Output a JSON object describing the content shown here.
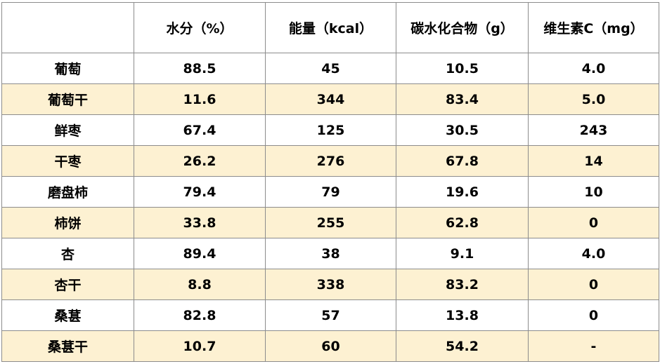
{
  "table": {
    "header": [
      "水分（%）",
      "能量（kcal）",
      "碳水化合物（g）",
      "维生素C（mg）"
    ],
    "rows": [
      [
        "葡萄",
        "88.5",
        "45",
        "10.5",
        "4.0"
      ],
      [
        "葡萄干",
        "11.6",
        "344",
        "83.4",
        "5.0"
      ],
      [
        "鲜枣",
        "67.4",
        "125",
        "30.5",
        "243"
      ],
      [
        "干枣",
        "26.2",
        "276",
        "67.8",
        "14"
      ],
      [
        "磨盘柿",
        "79.4",
        "79",
        "19.6",
        "10"
      ],
      [
        "柿饼",
        "33.8",
        "255",
        "62.8",
        "0"
      ],
      [
        "杏",
        "89.4",
        "38",
        "9.1",
        "4.0"
      ],
      [
        "杏干",
        "8.8",
        "338",
        "83.2",
        "0"
      ],
      [
        "桑葚",
        "82.8",
        "57",
        "13.8",
        "0"
      ],
      [
        "桑葚干",
        "10.7",
        "60",
        "54.2",
        "-"
      ]
    ]
  }
}
